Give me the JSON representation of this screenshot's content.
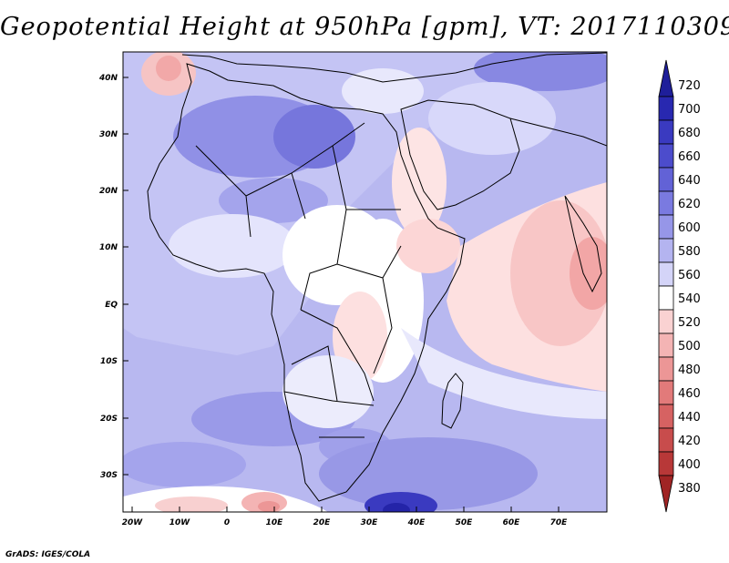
{
  "title": "Geopotential Height at 950hPa [gpm], VT: 2017110309",
  "footer": "GrADS: IGES/COLA",
  "map": {
    "region": "Africa and Arabian Peninsula",
    "lon_range": [
      -22,
      80
    ],
    "lat_range": [
      -37,
      45
    ],
    "lon_ticks": [
      "20W",
      "10W",
      "0",
      "10E",
      "20E",
      "30E",
      "40E",
      "50E",
      "60E",
      "70E"
    ],
    "lat_ticks": [
      "40N",
      "30N",
      "20N",
      "10N",
      "EQ",
      "10S",
      "20S",
      "30S"
    ]
  },
  "colorbar": {
    "levels": [
      "720",
      "700",
      "680",
      "660",
      "640",
      "620",
      "600",
      "580",
      "560",
      "540",
      "520",
      "500",
      "480",
      "460",
      "440",
      "420",
      "400",
      "380"
    ],
    "colors": [
      "#1e1e9a",
      "#2828b0",
      "#3a3ac0",
      "#4c4ccc",
      "#6262d6",
      "#7a7ae0",
      "#9696e8",
      "#b4b4f0",
      "#d4d4f8",
      "#ffffff",
      "#fad2d2",
      "#f4b4b4",
      "#ec9696",
      "#e27a7a",
      "#d66262",
      "#c84c4c",
      "#b83838",
      "#a02424"
    ]
  }
}
